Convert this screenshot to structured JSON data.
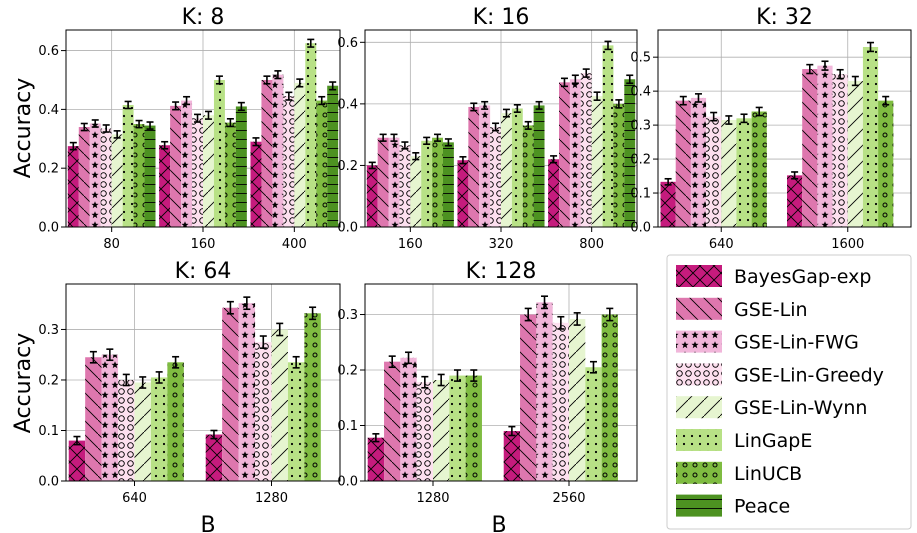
{
  "figure": {
    "ylabel": "Accuracy",
    "xlabel": "B"
  },
  "legend": {
    "placement": "bottom-right",
    "entries": [
      "BayesGap-exp",
      "GSE-Lin",
      "GSE-Lin-FWG",
      "GSE-Lin-Greedy",
      "GSE-Lin-Wynn",
      "LinGapE",
      "LinUCB",
      "Peace"
    ]
  },
  "series_styles": [
    {
      "name": "BayesGap-exp",
      "color": "#c51b7d",
      "hatch": "x"
    },
    {
      "name": "GSE-Lin",
      "color": "#de77ae",
      "hatch": "\\"
    },
    {
      "name": "GSE-Lin-FWG",
      "color": "#f1b6da",
      "hatch": "*"
    },
    {
      "name": "GSE-Lin-Greedy",
      "color": "#fde0ef",
      "hatch": "o"
    },
    {
      "name": "GSE-Lin-Wynn",
      "color": "#e6f5d0",
      "hatch": "/"
    },
    {
      "name": "LinGapE",
      "color": "#b8e186",
      "hatch": "."
    },
    {
      "name": "LinUCB",
      "color": "#7fbc41",
      "hatch": "O"
    },
    {
      "name": "Peace",
      "color": "#4d9221",
      "hatch": "-"
    }
  ],
  "chart_data": [
    {
      "type": "bar",
      "title": "K: 8",
      "categories": [
        "80",
        "160",
        "400"
      ],
      "ylim": [
        0,
        0.67
      ],
      "yticks": [
        0.0,
        0.2,
        0.4,
        0.6
      ],
      "grid": true,
      "series": [
        {
          "name": "BayesGap-exp",
          "values": [
            0.275,
            0.278,
            0.29
          ],
          "errors": [
            0.012,
            0.012,
            0.013
          ]
        },
        {
          "name": "GSE-Lin",
          "values": [
            0.34,
            0.412,
            0.5
          ],
          "errors": [
            0.012,
            0.013,
            0.013
          ]
        },
        {
          "name": "GSE-Lin-FWG",
          "values": [
            0.352,
            0.43,
            0.518
          ],
          "errors": [
            0.012,
            0.013,
            0.013
          ]
        },
        {
          "name": "GSE-Lin-Greedy",
          "values": [
            0.335,
            0.37,
            0.445
          ],
          "errors": [
            0.012,
            0.013,
            0.013
          ]
        },
        {
          "name": "GSE-Lin-Wynn",
          "values": [
            0.315,
            0.38,
            0.49
          ],
          "errors": [
            0.012,
            0.013,
            0.013
          ]
        },
        {
          "name": "LinGapE",
          "values": [
            0.415,
            0.5,
            0.625
          ],
          "errors": [
            0.012,
            0.013,
            0.013
          ]
        },
        {
          "name": "LinUCB",
          "values": [
            0.35,
            0.355,
            0.43
          ],
          "errors": [
            0.012,
            0.013,
            0.013
          ]
        },
        {
          "name": "Peace",
          "values": [
            0.345,
            0.41,
            0.48
          ],
          "errors": [
            0.012,
            0.013,
            0.013
          ]
        }
      ]
    },
    {
      "type": "bar",
      "title": "K: 16",
      "categories": [
        "160",
        "320",
        "800"
      ],
      "ylim": [
        0,
        0.64
      ],
      "yticks": [
        0.0,
        0.2,
        0.4,
        0.6
      ],
      "grid": true,
      "series": [
        {
          "name": "BayesGap-exp",
          "values": [
            0.2,
            0.217,
            0.22
          ],
          "errors": [
            0.01,
            0.011,
            0.011
          ]
        },
        {
          "name": "GSE-Lin",
          "values": [
            0.29,
            0.39,
            0.47
          ],
          "errors": [
            0.011,
            0.012,
            0.013
          ]
        },
        {
          "name": "GSE-Lin-FWG",
          "values": [
            0.29,
            0.395,
            0.48
          ],
          "errors": [
            0.011,
            0.012,
            0.013
          ]
        },
        {
          "name": "GSE-Lin-Greedy",
          "values": [
            0.265,
            0.325,
            0.5
          ],
          "errors": [
            0.011,
            0.012,
            0.013
          ]
        },
        {
          "name": "GSE-Lin-Wynn",
          "values": [
            0.23,
            0.37,
            0.425
          ],
          "errors": [
            0.011,
            0.012,
            0.013
          ]
        },
        {
          "name": "LinGapE",
          "values": [
            0.28,
            0.385,
            0.59
          ],
          "errors": [
            0.011,
            0.012,
            0.013
          ]
        },
        {
          "name": "LinUCB",
          "values": [
            0.29,
            0.33,
            0.4
          ],
          "errors": [
            0.011,
            0.012,
            0.013
          ]
        },
        {
          "name": "Peace",
          "values": [
            0.275,
            0.395,
            0.48
          ],
          "errors": [
            0.011,
            0.012,
            0.013
          ]
        }
      ]
    },
    {
      "type": "bar",
      "title": "K: 32",
      "categories": [
        "640",
        "1600"
      ],
      "ylim": [
        0,
        0.58
      ],
      "yticks": [
        0.0,
        0.1,
        0.2,
        0.3,
        0.4,
        0.5
      ],
      "grid": true,
      "series": [
        {
          "name": "BayesGap-exp",
          "values": [
            0.133,
            0.152
          ],
          "errors": [
            0.009,
            0.01
          ]
        },
        {
          "name": "GSE-Lin",
          "values": [
            0.372,
            0.465
          ],
          "errors": [
            0.012,
            0.013
          ]
        },
        {
          "name": "GSE-Lin-FWG",
          "values": [
            0.38,
            0.475
          ],
          "errors": [
            0.012,
            0.013
          ]
        },
        {
          "name": "GSE-Lin-Greedy",
          "values": [
            0.325,
            0.45
          ],
          "errors": [
            0.012,
            0.013
          ]
        },
        {
          "name": "GSE-Lin-Wynn",
          "values": [
            0.315,
            0.43
          ],
          "errors": [
            0.012,
            0.013
          ]
        },
        {
          "name": "LinGapE",
          "values": [
            0.32,
            0.53
          ],
          "errors": [
            0.012,
            0.013
          ]
        },
        {
          "name": "LinUCB",
          "values": [
            0.34,
            0.372
          ],
          "errors": [
            0.012,
            0.012
          ]
        },
        {
          "name": "Peace",
          "values": [
            0,
            0
          ],
          "errors": [
            0,
            0
          ]
        }
      ]
    },
    {
      "type": "bar",
      "title": "K: 64",
      "categories": [
        "640",
        "1280"
      ],
      "ylim": [
        0,
        0.39
      ],
      "yticks": [
        0.0,
        0.1,
        0.2,
        0.3
      ],
      "grid": true,
      "series": [
        {
          "name": "BayesGap-exp",
          "values": [
            0.08,
            0.092
          ],
          "errors": [
            0.008,
            0.008
          ]
        },
        {
          "name": "GSE-Lin",
          "values": [
            0.245,
            0.343
          ],
          "errors": [
            0.011,
            0.012
          ]
        },
        {
          "name": "GSE-Lin-FWG",
          "values": [
            0.25,
            0.352
          ],
          "errors": [
            0.011,
            0.012
          ]
        },
        {
          "name": "GSE-Lin-Greedy",
          "values": [
            0.2,
            0.275
          ],
          "errors": [
            0.011,
            0.012
          ]
        },
        {
          "name": "GSE-Lin-Wynn",
          "values": [
            0.195,
            0.3
          ],
          "errors": [
            0.011,
            0.012
          ]
        },
        {
          "name": "LinGapE",
          "values": [
            0.205,
            0.235
          ],
          "errors": [
            0.011,
            0.011
          ]
        },
        {
          "name": "LinUCB",
          "values": [
            0.235,
            0.332
          ],
          "errors": [
            0.011,
            0.012
          ]
        },
        {
          "name": "Peace",
          "values": [
            0,
            0
          ],
          "errors": [
            0,
            0
          ]
        }
      ]
    },
    {
      "type": "bar",
      "title": "K: 128",
      "categories": [
        "1280",
        "2560"
      ],
      "ylim": [
        0,
        0.355
      ],
      "yticks": [
        0.0,
        0.1,
        0.2,
        0.3
      ],
      "grid": true,
      "series": [
        {
          "name": "BayesGap-exp",
          "values": [
            0.078,
            0.09
          ],
          "errors": [
            0.007,
            0.008
          ]
        },
        {
          "name": "GSE-Lin",
          "values": [
            0.215,
            0.3
          ],
          "errors": [
            0.01,
            0.011
          ]
        },
        {
          "name": "GSE-Lin-FWG",
          "values": [
            0.222,
            0.322
          ],
          "errors": [
            0.01,
            0.011
          ]
        },
        {
          "name": "GSE-Lin-Greedy",
          "values": [
            0.178,
            0.285
          ],
          "errors": [
            0.01,
            0.011
          ]
        },
        {
          "name": "GSE-Lin-Wynn",
          "values": [
            0.182,
            0.292
          ],
          "errors": [
            0.01,
            0.011
          ]
        },
        {
          "name": "LinGapE",
          "values": [
            0.19,
            0.205
          ],
          "errors": [
            0.01,
            0.01
          ]
        },
        {
          "name": "LinUCB",
          "values": [
            0.19,
            0.3
          ],
          "errors": [
            0.01,
            0.011
          ]
        },
        {
          "name": "Peace",
          "values": [
            0,
            0
          ],
          "errors": [
            0,
            0
          ]
        }
      ]
    }
  ]
}
